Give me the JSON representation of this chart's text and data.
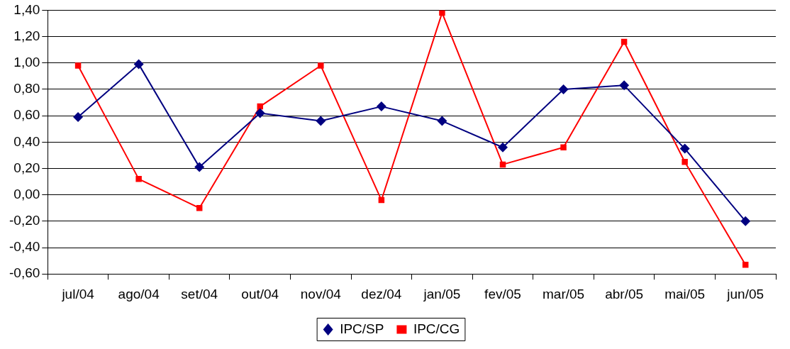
{
  "chart_data": {
    "type": "line",
    "categories": [
      "jul/04",
      "ago/04",
      "set/04",
      "out/04",
      "nov/04",
      "dez/04",
      "jan/05",
      "fev/05",
      "mar/05",
      "abr/05",
      "mai/05",
      "jun/05"
    ],
    "series": [
      {
        "name": "IPC/SP",
        "color": "#000080",
        "marker": "diamond",
        "values": [
          0.59,
          0.99,
          0.21,
          0.62,
          0.56,
          0.67,
          0.56,
          0.36,
          0.8,
          0.83,
          0.35,
          -0.2
        ]
      },
      {
        "name": "IPC/CG",
        "color": "#ff0000",
        "marker": "square",
        "values": [
          0.98,
          0.12,
          -0.1,
          0.67,
          0.98,
          -0.04,
          1.38,
          0.23,
          0.36,
          1.16,
          0.25,
          -0.53
        ]
      }
    ],
    "ylim": [
      -0.6,
      1.4
    ],
    "yticks": [
      {
        "value": -0.6,
        "label": "-0,60"
      },
      {
        "value": -0.4,
        "label": "-0,40"
      },
      {
        "value": -0.2,
        "label": "-0,20"
      },
      {
        "value": 0,
        "label": "0,00"
      },
      {
        "value": 0.2,
        "label": "0,20"
      },
      {
        "value": 0.4,
        "label": "0,40"
      },
      {
        "value": 0.6,
        "label": "0,60"
      },
      {
        "value": 0.8,
        "label": "0,80"
      },
      {
        "value": 1.0,
        "label": "1,00"
      },
      {
        "value": 1.2,
        "label": "1,20"
      },
      {
        "value": 1.4,
        "label": "1,40"
      }
    ],
    "grid": "y",
    "legend": "bottom",
    "line_style": "solid"
  }
}
